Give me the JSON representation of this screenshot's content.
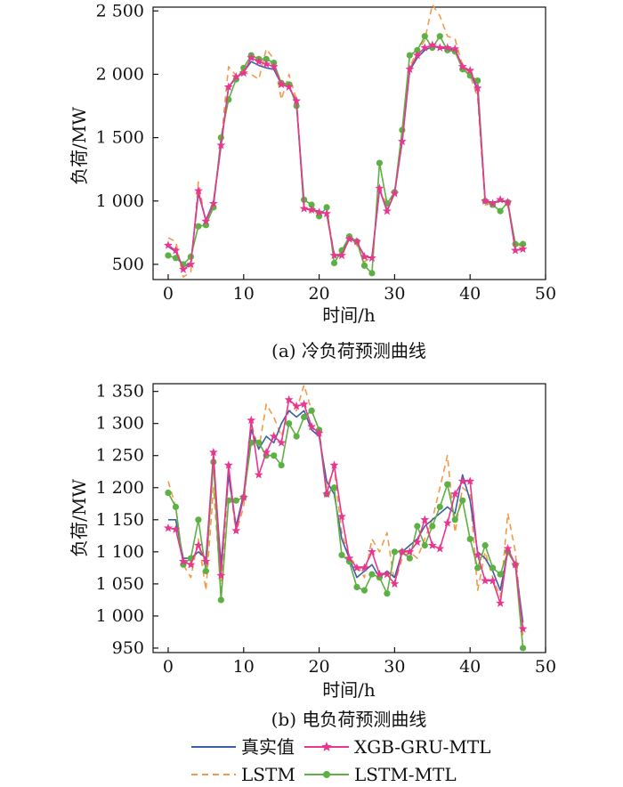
{
  "chart_data": [
    {
      "type": "line",
      "caption": "(a) 冷负荷预测曲线",
      "xlabel": "时间/h",
      "ylabel": "负荷/MW",
      "xlim": [
        -2,
        50
      ],
      "ylim": [
        380,
        2530
      ],
      "xticks": [
        0,
        10,
        20,
        30,
        40,
        50
      ],
      "xtick_labels": [
        "0",
        "10",
        "20",
        "30",
        "40",
        "50"
      ],
      "yticks": [
        500,
        1000,
        1500,
        2000,
        2500
      ],
      "ytick_labels": [
        "500",
        "1 000",
        "1 500",
        "2 000",
        "2 500"
      ],
      "grid": false,
      "x": [
        0,
        1,
        2,
        3,
        4,
        5,
        6,
        7,
        8,
        9,
        10,
        11,
        12,
        13,
        14,
        15,
        16,
        17,
        18,
        19,
        20,
        21,
        22,
        23,
        24,
        25,
        26,
        27,
        28,
        29,
        30,
        31,
        32,
        33,
        34,
        35,
        36,
        37,
        38,
        39,
        40,
        41,
        42,
        43,
        44,
        45,
        46,
        47
      ],
      "series": [
        {
          "name": "真实值",
          "values": [
            640,
            600,
            480,
            510,
            1060,
            850,
            990,
            1430,
            1900,
            1970,
            2020,
            2100,
            2070,
            2050,
            2040,
            1920,
            1900,
            1780,
            940,
            930,
            920,
            900,
            570,
            580,
            710,
            670,
            570,
            550,
            1090,
            920,
            1070,
            1470,
            2030,
            2130,
            2190,
            2220,
            2210,
            2200,
            2190,
            2060,
            2020,
            1870,
            1000,
            990,
            1000,
            990,
            610,
            620
          ]
        },
        {
          "name": "LSTM",
          "values": [
            710,
            680,
            400,
            440,
            1150,
            820,
            1000,
            1460,
            2060,
            1990,
            2010,
            2000,
            1960,
            2200,
            2120,
            1800,
            2000,
            1800,
            980,
            900,
            910,
            940,
            570,
            560,
            720,
            650,
            520,
            560,
            1080,
            980,
            1060,
            1500,
            2060,
            2180,
            2270,
            2550,
            2460,
            2300,
            2280,
            2070,
            1990,
            1820,
            970,
            980,
            1000,
            960,
            660,
            640
          ]
        },
        {
          "name": "LSTM-MTL",
          "values": [
            570,
            550,
            500,
            560,
            800,
            810,
            950,
            1500,
            1800,
            1960,
            2050,
            2150,
            2120,
            2120,
            2090,
            1930,
            1920,
            1750,
            1010,
            970,
            880,
            950,
            510,
            610,
            720,
            680,
            490,
            430,
            1300,
            980,
            1070,
            1560,
            2150,
            2190,
            2300,
            2210,
            2300,
            2190,
            2180,
            2040,
            1990,
            1950,
            1000,
            970,
            920,
            990,
            660,
            660
          ]
        },
        {
          "name": "XGB-GRU-MTL",
          "values": [
            650,
            610,
            460,
            500,
            1080,
            840,
            980,
            1440,
            1900,
            1980,
            2010,
            2130,
            2100,
            2080,
            2060,
            1920,
            1900,
            1790,
            940,
            930,
            910,
            900,
            570,
            570,
            700,
            680,
            560,
            550,
            1100,
            920,
            1060,
            1470,
            2040,
            2150,
            2210,
            2230,
            2210,
            2210,
            2200,
            2060,
            2030,
            1890,
            1000,
            980,
            1010,
            990,
            610,
            620
          ]
        }
      ]
    },
    {
      "type": "line",
      "caption": "(b) 电负荷预测曲线",
      "xlabel": "时间/h",
      "ylabel": "负荷/MW",
      "xlim": [
        -2,
        50
      ],
      "ylim": [
        943,
        1362
      ],
      "xticks": [
        0,
        10,
        20,
        30,
        40,
        50
      ],
      "xtick_labels": [
        "0",
        "10",
        "20",
        "30",
        "40",
        "50"
      ],
      "yticks": [
        950,
        1000,
        1050,
        1100,
        1150,
        1200,
        1250,
        1300,
        1350
      ],
      "ytick_labels": [
        "950",
        "1 000",
        "1 050",
        "1 100",
        "1 150",
        "1 200",
        "1 250",
        "1 300",
        "1 350"
      ],
      "grid": false,
      "x": [
        0,
        1,
        2,
        3,
        4,
        5,
        6,
        7,
        8,
        9,
        10,
        11,
        12,
        13,
        14,
        15,
        16,
        17,
        18,
        19,
        20,
        21,
        22,
        23,
        24,
        25,
        26,
        27,
        28,
        29,
        30,
        31,
        32,
        33,
        34,
        35,
        36,
        37,
        38,
        39,
        40,
        41,
        42,
        43,
        44,
        45,
        46,
        47
      ],
      "series": [
        {
          "name": "真实值",
          "values": [
            1150,
            1150,
            1090,
            1090,
            1100,
            1090,
            1240,
            1080,
            1220,
            1140,
            1190,
            1290,
            1260,
            1280,
            1270,
            1300,
            1320,
            1310,
            1320,
            1290,
            1280,
            1210,
            1190,
            1120,
            1090,
            1060,
            1070,
            1080,
            1060,
            1070,
            1060,
            1100,
            1110,
            1120,
            1140,
            1150,
            1160,
            1170,
            1160,
            1220,
            1180,
            1100,
            1090,
            1070,
            1040,
            1100,
            1080,
            990
          ]
        },
        {
          "name": "LSTM",
          "values": [
            1210,
            1170,
            1080,
            1060,
            1120,
            1040,
            1200,
            1040,
            1220,
            1130,
            1170,
            1300,
            1260,
            1330,
            1310,
            1280,
            1320,
            1320,
            1360,
            1320,
            1290,
            1200,
            1230,
            1130,
            1090,
            1080,
            1060,
            1120,
            1100,
            1130,
            1050,
            1090,
            1100,
            1090,
            1120,
            1150,
            1200,
            1250,
            1130,
            1200,
            1190,
            1040,
            1100,
            1060,
            1030,
            1160,
            1100,
            970
          ]
        },
        {
          "name": "LSTM-MTL",
          "values": [
            1192,
            1170,
            1080,
            1090,
            1150,
            1070,
            1240,
            1025,
            1180,
            1180,
            1185,
            1270,
            1270,
            1250,
            1250,
            1235,
            1300,
            1280,
            1310,
            1320,
            1290,
            1190,
            1200,
            1095,
            1085,
            1045,
            1040,
            1065,
            1060,
            1035,
            1100,
            1100,
            1090,
            1140,
            1110,
            1140,
            1170,
            1205,
            1150,
            1180,
            1120,
            1075,
            1110,
            1075,
            1065,
            1100,
            1080,
            950
          ]
        },
        {
          "name": "XGB-GRU-MTL",
          "values": [
            1137,
            1135,
            1085,
            1080,
            1110,
            1085,
            1255,
            1063,
            1235,
            1133,
            1185,
            1305,
            1220,
            1255,
            1280,
            1270,
            1337,
            1327,
            1330,
            1295,
            1285,
            1190,
            1235,
            1155,
            1090,
            1075,
            1075,
            1100,
            1065,
            1065,
            1050,
            1100,
            1100,
            1115,
            1150,
            1110,
            1105,
            1145,
            1190,
            1210,
            1210,
            1095,
            1055,
            1055,
            1020,
            1105,
            1080,
            980
          ]
        }
      ]
    }
  ],
  "legend": {
    "placement": "bottom",
    "items": [
      {
        "label": "真实值",
        "color": "#3b5fa8",
        "style": "solid",
        "marker": "none"
      },
      {
        "label": "XGB-GRU-MTL",
        "color": "#e8378f",
        "style": "solid",
        "marker": "star"
      },
      {
        "label": "LSTM",
        "color": "#f39a4a",
        "style": "dashed",
        "marker": "none"
      },
      {
        "label": "LSTM-MTL",
        "color": "#5db043",
        "style": "solid",
        "marker": "circle"
      }
    ]
  },
  "series_styles": {
    "真实值": {
      "color": "#3b5fa8",
      "dash": "",
      "marker": "none"
    },
    "LSTM": {
      "color": "#f39a4a",
      "dash": "7,5",
      "marker": "none"
    },
    "LSTM-MTL": {
      "color": "#5db043",
      "dash": "",
      "marker": "circle"
    },
    "XGB-GRU-MTL": {
      "color": "#e8378f",
      "dash": "",
      "marker": "star"
    }
  }
}
